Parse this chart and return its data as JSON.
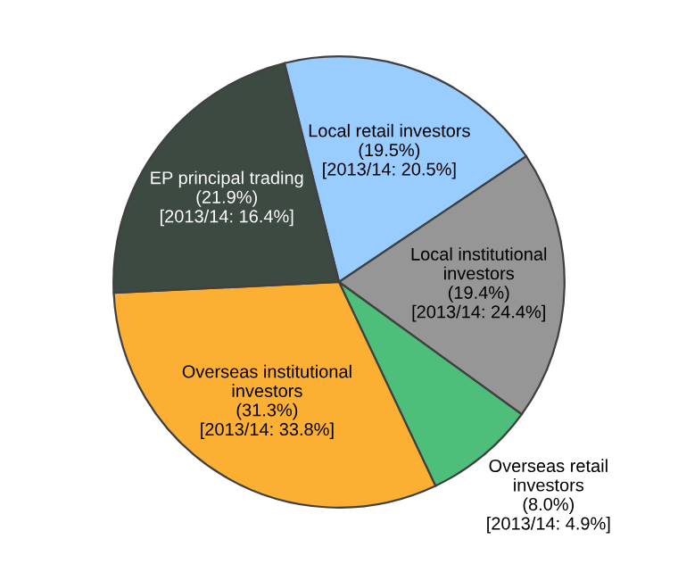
{
  "chart_data": {
    "type": "pie",
    "categories": [
      "Local retail investors",
      "Local institutional\ninvestors",
      "Overseas retail\ninvestors",
      "Overseas institutional\ninvestors",
      "EP principal trading"
    ],
    "values": [
      19.5,
      19.4,
      8.0,
      31.3,
      21.9
    ],
    "colors": [
      "#99ccff",
      "#969696",
      "#4dbf7a",
      "#fbb034",
      "#3d4a42"
    ],
    "value_labels": [
      "(19.5%)\n[2013/14: 20.5%]",
      "(19.4%)\n[2013/14: 24.4%]",
      "(8.0%)\n[2013/14: 4.9%]",
      "(31.3%)\n[2013/14: 33.8%]",
      "(21.9%)\n[2013/14: 16.4%]"
    ],
    "legend": false
  }
}
